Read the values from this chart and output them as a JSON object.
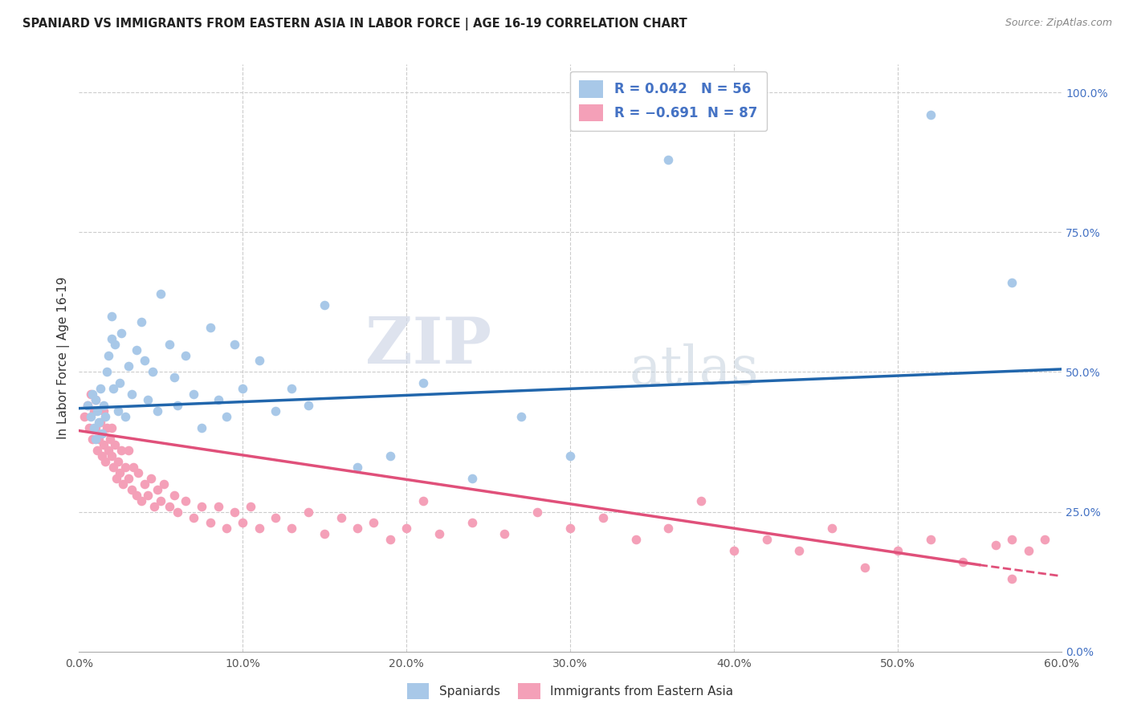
{
  "title": "SPANIARD VS IMMIGRANTS FROM EASTERN ASIA IN LABOR FORCE | AGE 16-19 CORRELATION CHART",
  "source": "Source: ZipAtlas.com",
  "ylabel": "In Labor Force | Age 16-19",
  "xmin": 0.0,
  "xmax": 0.6,
  "ymin": 0.0,
  "ymax": 1.05,
  "blue_color": "#a8c8e8",
  "pink_color": "#f4a0b8",
  "blue_line_color": "#2166ac",
  "pink_line_color": "#e0507a",
  "r_value_color": "#4472c4",
  "watermark_zip": "ZIP",
  "watermark_atlas": "atlas",
  "legend_label1": "Spaniards",
  "legend_label2": "Immigrants from Eastern Asia",
  "sp_x": [
    0.005,
    0.007,
    0.008,
    0.009,
    0.01,
    0.01,
    0.011,
    0.012,
    0.013,
    0.014,
    0.015,
    0.016,
    0.017,
    0.018,
    0.02,
    0.02,
    0.021,
    0.022,
    0.024,
    0.025,
    0.026,
    0.028,
    0.03,
    0.032,
    0.035,
    0.038,
    0.04,
    0.042,
    0.045,
    0.048,
    0.05,
    0.055,
    0.058,
    0.06,
    0.065,
    0.07,
    0.075,
    0.08,
    0.085,
    0.09,
    0.095,
    0.1,
    0.11,
    0.12,
    0.13,
    0.14,
    0.15,
    0.17,
    0.19,
    0.21,
    0.24,
    0.27,
    0.3,
    0.36,
    0.52,
    0.57
  ],
  "sp_y": [
    0.44,
    0.42,
    0.46,
    0.4,
    0.38,
    0.45,
    0.43,
    0.41,
    0.47,
    0.39,
    0.44,
    0.42,
    0.5,
    0.53,
    0.56,
    0.6,
    0.47,
    0.55,
    0.43,
    0.48,
    0.57,
    0.42,
    0.51,
    0.46,
    0.54,
    0.59,
    0.52,
    0.45,
    0.5,
    0.43,
    0.64,
    0.55,
    0.49,
    0.44,
    0.53,
    0.46,
    0.4,
    0.58,
    0.45,
    0.42,
    0.55,
    0.47,
    0.52,
    0.43,
    0.47,
    0.44,
    0.62,
    0.33,
    0.35,
    0.48,
    0.31,
    0.42,
    0.35,
    0.88,
    0.96,
    0.66
  ],
  "im_x": [
    0.003,
    0.005,
    0.006,
    0.007,
    0.008,
    0.009,
    0.01,
    0.01,
    0.011,
    0.012,
    0.013,
    0.014,
    0.015,
    0.015,
    0.016,
    0.017,
    0.018,
    0.019,
    0.02,
    0.02,
    0.021,
    0.022,
    0.023,
    0.024,
    0.025,
    0.026,
    0.027,
    0.028,
    0.03,
    0.03,
    0.032,
    0.033,
    0.035,
    0.036,
    0.038,
    0.04,
    0.042,
    0.044,
    0.046,
    0.048,
    0.05,
    0.052,
    0.055,
    0.058,
    0.06,
    0.065,
    0.07,
    0.075,
    0.08,
    0.085,
    0.09,
    0.095,
    0.1,
    0.105,
    0.11,
    0.12,
    0.13,
    0.14,
    0.15,
    0.16,
    0.17,
    0.18,
    0.19,
    0.2,
    0.21,
    0.22,
    0.24,
    0.26,
    0.28,
    0.3,
    0.32,
    0.34,
    0.36,
    0.38,
    0.4,
    0.42,
    0.44,
    0.46,
    0.48,
    0.5,
    0.52,
    0.54,
    0.56,
    0.57,
    0.57,
    0.58,
    0.59
  ],
  "im_y": [
    0.42,
    0.44,
    0.4,
    0.46,
    0.38,
    0.43,
    0.4,
    0.45,
    0.36,
    0.38,
    0.41,
    0.35,
    0.37,
    0.43,
    0.34,
    0.4,
    0.36,
    0.38,
    0.35,
    0.4,
    0.33,
    0.37,
    0.31,
    0.34,
    0.32,
    0.36,
    0.3,
    0.33,
    0.31,
    0.36,
    0.29,
    0.33,
    0.28,
    0.32,
    0.27,
    0.3,
    0.28,
    0.31,
    0.26,
    0.29,
    0.27,
    0.3,
    0.26,
    0.28,
    0.25,
    0.27,
    0.24,
    0.26,
    0.23,
    0.26,
    0.22,
    0.25,
    0.23,
    0.26,
    0.22,
    0.24,
    0.22,
    0.25,
    0.21,
    0.24,
    0.22,
    0.23,
    0.2,
    0.22,
    0.27,
    0.21,
    0.23,
    0.21,
    0.25,
    0.22,
    0.24,
    0.2,
    0.22,
    0.27,
    0.18,
    0.2,
    0.18,
    0.22,
    0.15,
    0.18,
    0.2,
    0.16,
    0.19,
    0.2,
    0.13,
    0.18,
    0.2
  ]
}
